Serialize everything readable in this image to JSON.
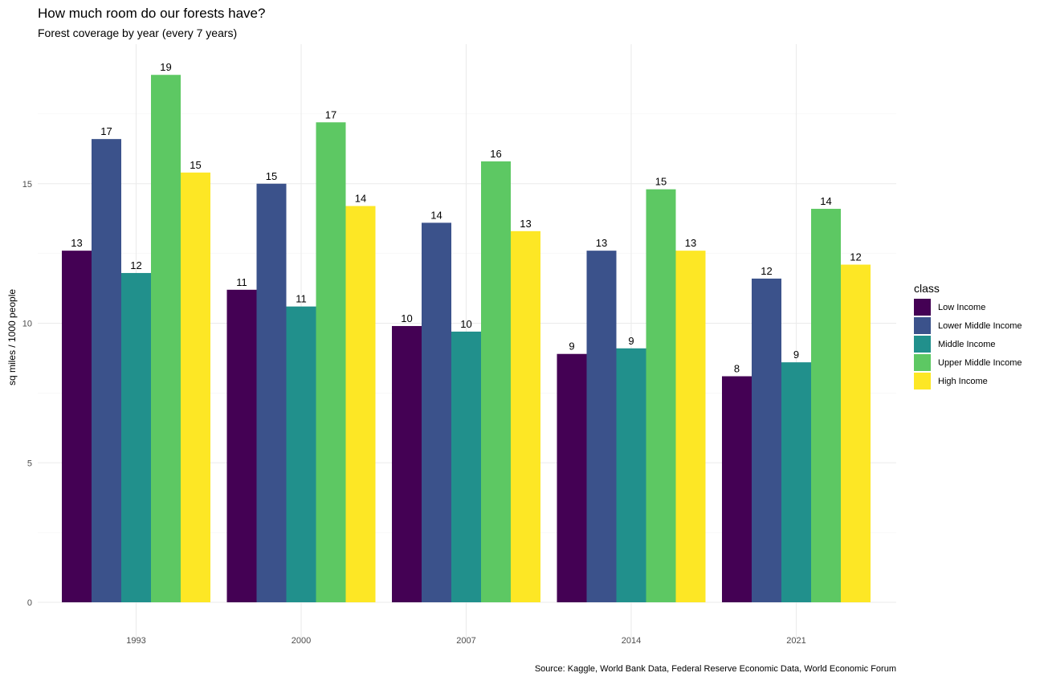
{
  "title": "How much room do our forests have?",
  "subtitle": "Forest coverage by year (every 7 years)",
  "caption": "Source: Kaggle, World Bank Data, Federal Reserve Economic Data, World Economic Forum",
  "legend_title": "class",
  "colors": [
    "#440154",
    "#3B528B",
    "#21908C",
    "#5DC863",
    "#FDE725"
  ],
  "chart_data": {
    "type": "bar",
    "title": "How much room do our forests have?",
    "subtitle": "Forest coverage by year (every 7 years)",
    "xlabel": "",
    "ylabel": "sq miles / 1000 people",
    "ylim": [
      0,
      20
    ],
    "yticks": [
      0,
      5,
      10,
      15
    ],
    "grid": true,
    "legend_position": "right",
    "categories": [
      "1993",
      "2000",
      "2007",
      "2014",
      "2021"
    ],
    "series": [
      {
        "name": "Low Income",
        "values": [
          12.6,
          11.2,
          9.9,
          8.9,
          8.1
        ],
        "labels": [
          "13",
          "11",
          "10",
          "9",
          "8"
        ]
      },
      {
        "name": "Lower Middle Income",
        "values": [
          16.6,
          15.0,
          13.6,
          12.6,
          11.6
        ],
        "labels": [
          "17",
          "15",
          "14",
          "13",
          "12"
        ]
      },
      {
        "name": "Middle Income",
        "values": [
          11.8,
          10.6,
          9.7,
          9.1,
          8.6
        ],
        "labels": [
          "12",
          "11",
          "10",
          "9",
          "9"
        ]
      },
      {
        "name": "Upper Middle Income",
        "values": [
          18.9,
          17.2,
          15.8,
          14.8,
          14.1
        ],
        "labels": [
          "19",
          "17",
          "16",
          "15",
          "14"
        ]
      },
      {
        "name": "High Income",
        "values": [
          15.4,
          14.2,
          13.3,
          12.6,
          12.1
        ],
        "labels": [
          "15",
          "14",
          "13",
          "13",
          "12"
        ]
      }
    ]
  }
}
